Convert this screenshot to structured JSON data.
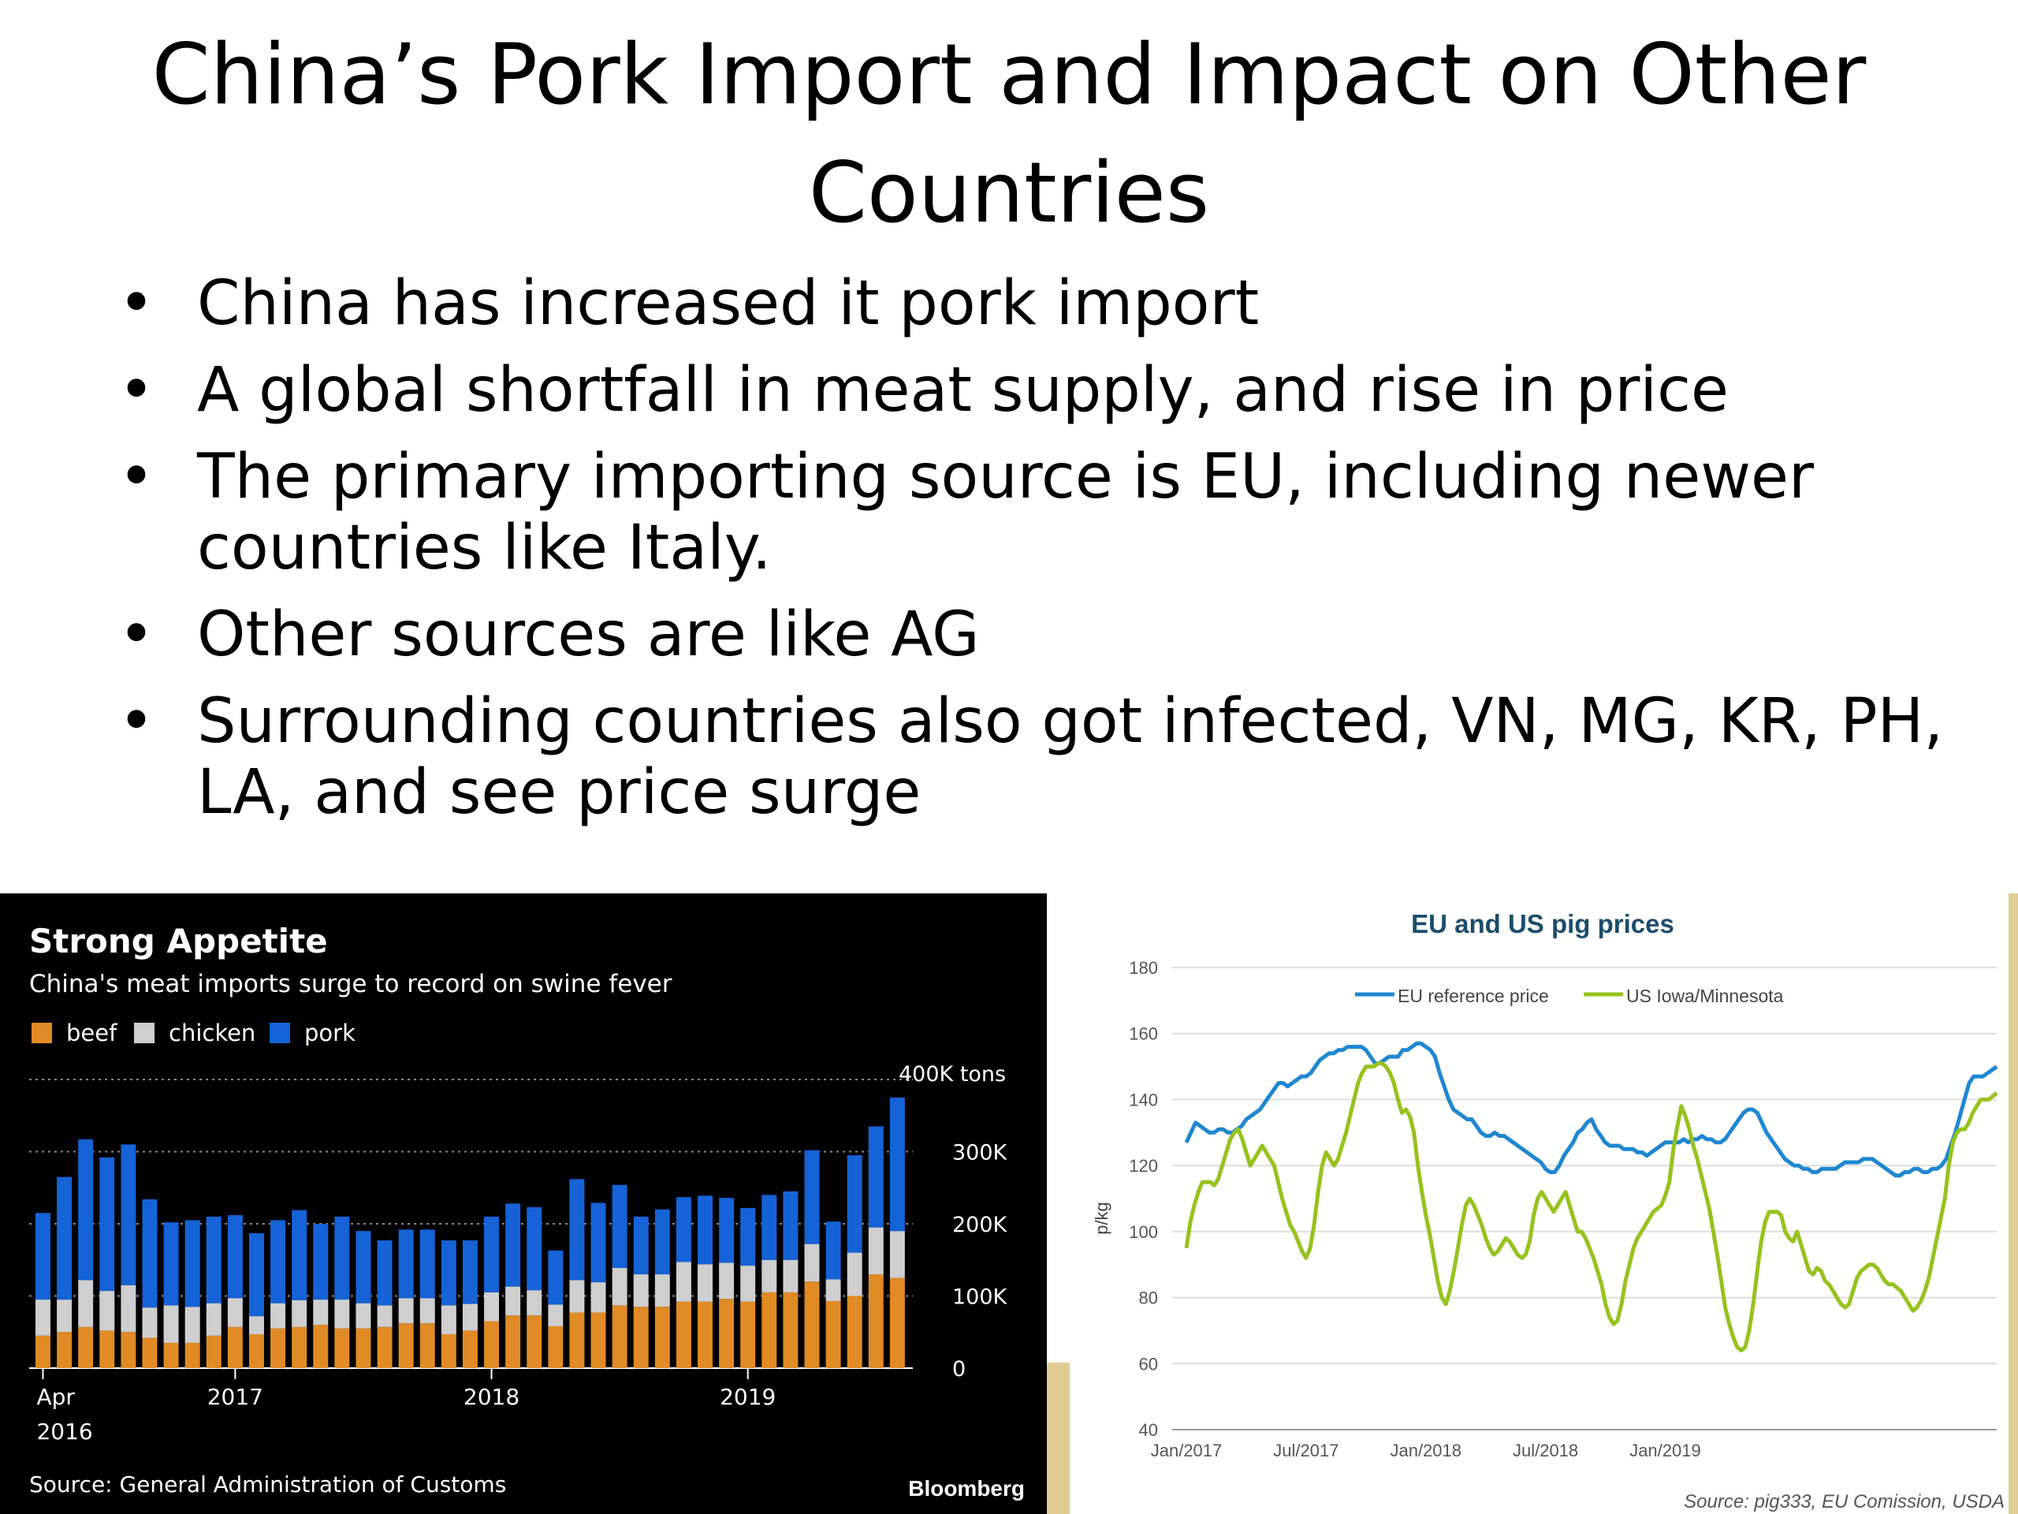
{
  "slide": {
    "title_line1": "China’s Pork Import and Impact on Other",
    "title_line2": "Countries",
    "bullets": [
      "China has increased it pork import",
      "A global shortfall in meat supply, and rise in price",
      "The primary importing source is EU, including newer countries like Italy.",
      "Other sources are like AG",
      "Surrounding countries also got infected, VN, MG, KR, PH, LA, and see price surge"
    ]
  },
  "colors": {
    "beef": "#e08b26",
    "chicken": "#cfcfcf",
    "pork": "#1563d6",
    "eu_line": "#1f87d0",
    "us_line": "#96c21e"
  },
  "chart_data": [
    {
      "type": "bar",
      "stacked": true,
      "title": "Strong Appetite",
      "subtitle": "China's meat imports surge to record on swine fever",
      "legend": [
        "beef",
        "chicken",
        "pork"
      ],
      "legend_position": "top-left",
      "x_tick_labels": [
        {
          "label": "Apr",
          "label2": "2016",
          "index": 0
        },
        {
          "label": "2017",
          "index": 9
        },
        {
          "label": "2018",
          "index": 21
        },
        {
          "label": "2019",
          "index": 33
        }
      ],
      "y_tick_labels": [
        "0",
        "100K",
        "200K",
        "300K",
        "400K tons"
      ],
      "y_ticks": [
        0,
        100,
        200,
        300,
        400
      ],
      "ylim": [
        0,
        400
      ],
      "unit": "thousand tons",
      "grid": true,
      "source": "Source: General Administration of Customs",
      "brand": "Bloomberg",
      "series": [
        {
          "name": "beef",
          "values": [
            45,
            50,
            57,
            52,
            50,
            42,
            35,
            35,
            45,
            57,
            47,
            55,
            57,
            60,
            55,
            55,
            57,
            62,
            62,
            47,
            52,
            65,
            73,
            73,
            58,
            77,
            77,
            87,
            85,
            85,
            92,
            92,
            96,
            92,
            105,
            105,
            120,
            93,
            100,
            130,
            125
          ]
        },
        {
          "name": "chicken",
          "values": [
            50,
            45,
            65,
            55,
            65,
            42,
            52,
            50,
            45,
            40,
            25,
            35,
            37,
            35,
            40,
            35,
            30,
            35,
            35,
            40,
            37,
            40,
            40,
            35,
            30,
            45,
            42,
            52,
            45,
            45,
            55,
            52,
            50,
            50,
            45,
            45,
            52,
            30,
            60,
            65,
            65
          ]
        },
        {
          "name": "pork",
          "values": [
            120,
            170,
            195,
            185,
            195,
            150,
            115,
            120,
            120,
            115,
            115,
            115,
            125,
            105,
            115,
            100,
            90,
            95,
            95,
            90,
            88,
            105,
            115,
            115,
            75,
            140,
            110,
            115,
            80,
            90,
            90,
            95,
            90,
            80,
            90,
            95,
            130,
            80,
            135,
            140,
            185
          ]
        }
      ]
    },
    {
      "type": "line",
      "title": "EU and US pig prices",
      "ylabel": "p/kg",
      "ylim": [
        40,
        180
      ],
      "y_ticks": [
        40,
        60,
        80,
        100,
        120,
        140,
        160,
        180
      ],
      "x_ticks": [
        "Jan/2017",
        "Jul/2017",
        "Jan/2018",
        "Jul/2018",
        "Jan/2019"
      ],
      "x_tick_index": [
        0,
        26,
        52,
        78,
        104
      ],
      "grid": true,
      "legend_position": "top-center",
      "source": "Source: pig333, EU Comission, USDA",
      "series": [
        {
          "name": "EU reference price",
          "values": [
            127,
            130,
            133,
            132,
            131,
            130,
            130,
            131,
            131,
            130,
            130,
            131,
            132,
            134,
            135,
            136,
            137,
            139,
            141,
            143,
            145,
            145,
            144,
            145,
            146,
            147,
            147,
            148,
            150,
            152,
            153,
            154,
            154,
            155,
            155,
            156,
            156,
            156,
            156,
            155,
            153,
            151,
            151,
            152,
            153,
            153,
            153,
            155,
            155,
            156,
            157,
            157,
            156,
            155,
            153,
            148,
            144,
            140,
            137,
            136,
            135,
            134,
            134,
            132,
            130,
            129,
            129,
            130,
            129,
            129,
            128,
            127,
            126,
            125,
            124,
            123,
            122,
            121,
            119,
            118,
            118,
            120,
            123,
            125,
            127,
            130,
            131,
            133,
            134,
            131,
            129,
            127,
            126,
            126,
            126,
            125,
            125,
            125,
            124,
            124,
            123,
            124,
            125,
            126,
            127,
            127,
            127,
            127,
            128,
            127,
            128,
            128,
            129,
            128,
            128,
            127,
            127,
            128,
            130,
            132,
            134,
            136,
            137,
            137,
            136,
            133,
            130,
            128,
            126,
            124,
            122,
            121,
            120,
            120,
            119,
            119,
            118,
            118,
            119,
            119,
            119,
            119,
            120,
            121,
            121,
            121,
            121,
            122,
            122,
            122,
            121,
            120,
            119,
            118,
            117,
            117,
            118,
            118,
            119,
            119,
            118,
            118,
            119,
            119,
            120,
            122,
            126,
            130,
            135,
            140,
            145,
            147,
            147,
            147,
            148,
            149,
            150
          ]
        },
        {
          "name": "US Iowa/Minnesota",
          "values": [
            95,
            103,
            108,
            112,
            115,
            115,
            115,
            114,
            116,
            120,
            124,
            128,
            130,
            131,
            128,
            124,
            120,
            122,
            124,
            126,
            124,
            122,
            120,
            115,
            110,
            106,
            102,
            100,
            97,
            94,
            92,
            95,
            102,
            112,
            120,
            124,
            122,
            120,
            122,
            126,
            130,
            135,
            140,
            145,
            148,
            150,
            150,
            150,
            151,
            151,
            150,
            148,
            145,
            140,
            136,
            137,
            135,
            130,
            120,
            112,
            105,
            99,
            92,
            85,
            80,
            78,
            82,
            88,
            95,
            102,
            108,
            110,
            108,
            105,
            102,
            98,
            95,
            93,
            94,
            96,
            98,
            97,
            95,
            93,
            92,
            93,
            97,
            105,
            110,
            112,
            110,
            108,
            106,
            108,
            110,
            112,
            108,
            104,
            100,
            100,
            98,
            95,
            92,
            88,
            84,
            78,
            74,
            72,
            73,
            78,
            85,
            90,
            95,
            98,
            100,
            102,
            104,
            106,
            107,
            108,
            111,
            115,
            125,
            132,
            138,
            135,
            131,
            126,
            122,
            117,
            112,
            107,
            100,
            93,
            85,
            77,
            72,
            68,
            65,
            64,
            65,
            70,
            78,
            88,
            97,
            103,
            106,
            106,
            106,
            105,
            100,
            98,
            97,
            100,
            96,
            92,
            88,
            87,
            89,
            88,
            85,
            84,
            82,
            80,
            78,
            77,
            78,
            82,
            86,
            88,
            89,
            90,
            90,
            89,
            87,
            85,
            84,
            84,
            83,
            82,
            80,
            78,
            76,
            77,
            79,
            82,
            86,
            92,
            98,
            104,
            110,
            120,
            127,
            130,
            131,
            131,
            133,
            136,
            138,
            140,
            140,
            140,
            141,
            142
          ]
        }
      ]
    }
  ]
}
